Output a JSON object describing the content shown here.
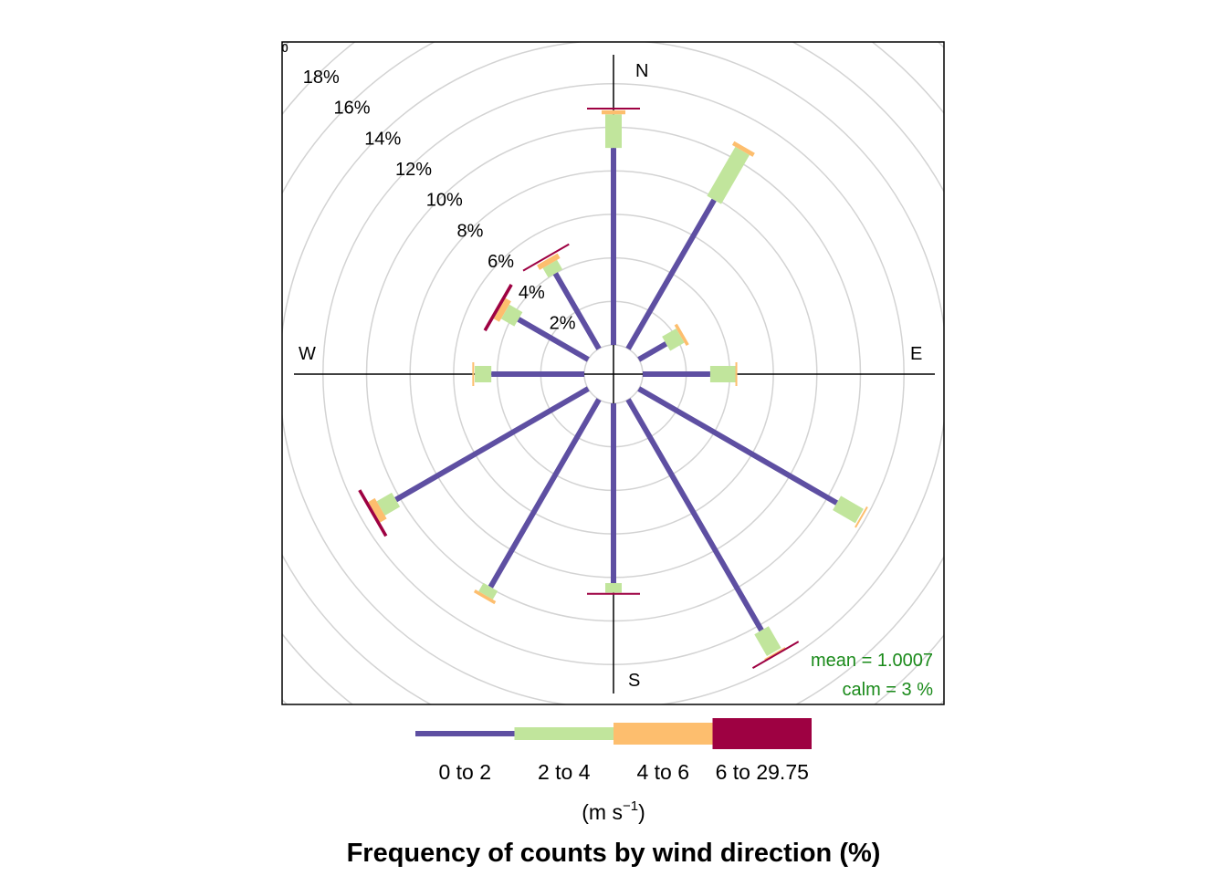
{
  "chart_data": {
    "type": "windrose",
    "title": "Frequency of counts by wind direction (%)",
    "directions_deg": [
      0,
      30,
      60,
      90,
      120,
      150,
      180,
      210,
      240,
      270,
      300,
      330
    ],
    "compass_labels": [
      "N",
      "E",
      "S",
      "W"
    ],
    "radial_ticks": [
      2,
      4,
      6,
      8,
      10,
      12,
      14,
      16,
      18,
      20
    ],
    "radial_tick_labels": [
      "2%",
      "4%",
      "6%",
      "8%",
      "10%",
      "12%",
      "14%",
      "16%",
      "18%",
      "%"
    ],
    "grid": true,
    "series": [
      {
        "name": "0 to 2",
        "color": "#5e4fa2",
        "values": [
          9.05,
          7.9,
          1.45,
          3.1,
          10.5,
          12.25,
          8.26,
          9.95,
          10.2,
          4.27,
          3.7,
          4.0
        ]
      },
      {
        "name": "2 to 4",
        "color": "#c1e59c",
        "values": [
          1.55,
          2.6,
          0.75,
          1.17,
          1.2,
          1.15,
          0.44,
          0.45,
          0.8,
          0.76,
          0.7,
          0.5
        ]
      },
      {
        "name": "4 to 6",
        "color": "#fdbe6e",
        "values": [
          0.18,
          0.2,
          0.15,
          0.03,
          0.1,
          0.1,
          0,
          0.15,
          0.35,
          0.07,
          0.3,
          0.25
        ]
      },
      {
        "name": "6 to 29.75",
        "color": "#9e0142",
        "values": [
          0.08,
          0,
          0,
          0,
          0,
          0.05,
          0.05,
          0,
          0.15,
          0,
          0.15,
          0.1
        ]
      }
    ],
    "legend_units": {
      "base": "(m s",
      "sup": "−1",
      "close": ")"
    },
    "legend_placement": "bottom",
    "annotations": {
      "mean": "mean  =  1.0007",
      "calm": "calm =  3 %"
    },
    "annotation_color": "#1a8a1a"
  }
}
